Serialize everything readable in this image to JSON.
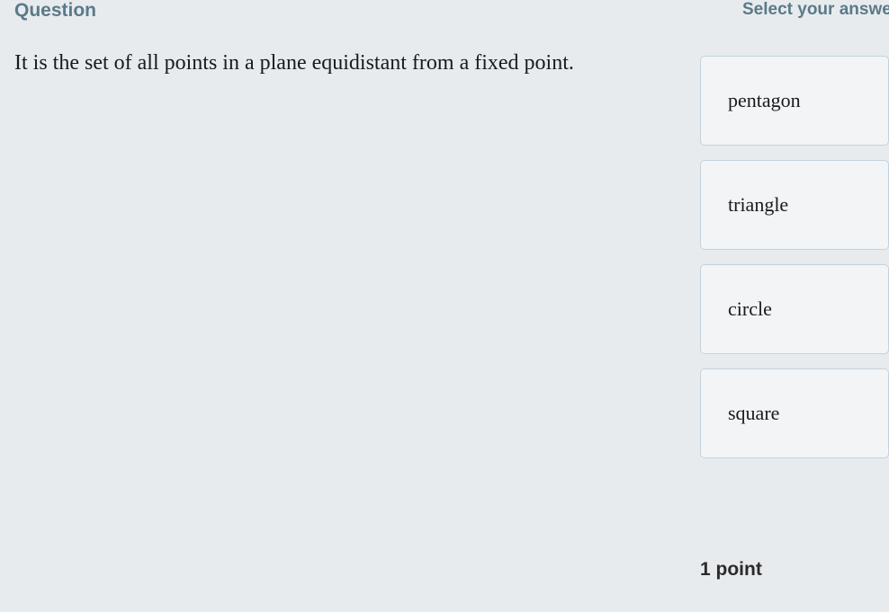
{
  "header": {
    "question_label": "Question",
    "select_label": "Select your answer"
  },
  "question": {
    "text": "It is the set of all points in a plane equidistant from a fixed point."
  },
  "answers": {
    "options": [
      {
        "label": "pentagon"
      },
      {
        "label": "triangle"
      },
      {
        "label": "circle"
      },
      {
        "label": "square"
      }
    ]
  },
  "footer": {
    "points": "1 point"
  },
  "style": {
    "background_color": "#e8ebed",
    "header_color": "#5a7a8a",
    "text_color": "#1a1a1a",
    "option_border_color": "#c5d2dc",
    "option_bg_color": "#f2f4f6",
    "question_fontsize": 24,
    "option_fontsize": 22,
    "header_fontsize": 21,
    "points_fontsize": 21
  }
}
